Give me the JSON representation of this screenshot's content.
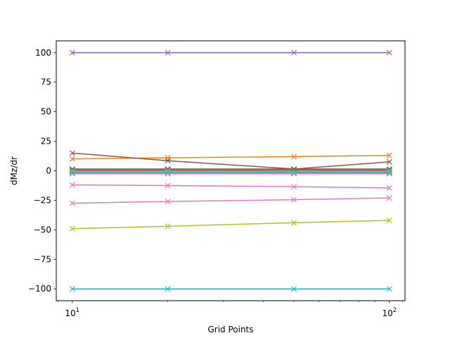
{
  "chart_data": {
    "type": "line",
    "title": "",
    "xlabel": "Grid Points",
    "ylabel": "dMz/dr",
    "xscale": "log",
    "x": [
      10,
      20,
      50,
      100
    ],
    "xlim": [
      8.9,
      112
    ],
    "ylim": [
      -110,
      110
    ],
    "xticks": [
      {
        "value": 10,
        "base": "10",
        "exp": "1"
      },
      {
        "value": 100,
        "base": "10",
        "exp": "2"
      }
    ],
    "yticks": [
      {
        "value": 100,
        "label": "100"
      },
      {
        "value": 75,
        "label": "75"
      },
      {
        "value": 50,
        "label": "50"
      },
      {
        "value": 25,
        "label": "25"
      },
      {
        "value": 0,
        "label": "0"
      },
      {
        "value": -25,
        "label": "−25"
      },
      {
        "value": -50,
        "label": "−50"
      },
      {
        "value": -75,
        "label": "−75"
      },
      {
        "value": -100,
        "label": "−100"
      }
    ],
    "marker": "x",
    "grid": false,
    "series": [
      {
        "color": "#1f77b4",
        "values": [
          1.5,
          1.5,
          1.5,
          1.5
        ]
      },
      {
        "color": "#ff7f0e",
        "values": [
          -2.0,
          -2.0,
          -2.0,
          -2.0
        ]
      },
      {
        "color": "#2ca02c",
        "values": [
          0.5,
          0.5,
          0.5,
          0.5
        ]
      },
      {
        "color": "#d62728",
        "values": [
          0.0,
          0.0,
          0.0,
          0.0
        ]
      },
      {
        "color": "#9467bd",
        "values": [
          -1.0,
          -1.0,
          -1.0,
          -1.0
        ]
      },
      {
        "color": "#8c564b",
        "values": [
          1.0,
          1.0,
          1.0,
          1.0
        ]
      },
      {
        "color": "#e377c2",
        "values": [
          -2.5,
          -2.5,
          -2.5,
          -2.5
        ]
      },
      {
        "color": "#7f7f7f",
        "values": [
          0.5,
          0.5,
          0.5,
          0.5
        ]
      },
      {
        "color": "#bcbd22",
        "values": [
          -0.5,
          -0.5,
          -0.5,
          -0.5
        ]
      },
      {
        "color": "#17becf",
        "values": [
          -1.5,
          -1.5,
          -1.5,
          -1.5
        ]
      },
      {
        "color": "#ff7f0e",
        "values": [
          10.0,
          11.0,
          12.0,
          13.0
        ]
      },
      {
        "color": "#8c564b",
        "values": [
          15.0,
          8.5,
          1.5,
          7.5
        ]
      },
      {
        "color": "#e377c2",
        "values": [
          -12.0,
          -12.5,
          -13.5,
          -14.5
        ]
      },
      {
        "color": "#e377c2",
        "values": [
          -27.5,
          -26.0,
          -24.5,
          -23.0
        ]
      },
      {
        "color": "#bcbd22",
        "values": [
          -49.0,
          -47.0,
          -44.0,
          -42.0
        ]
      },
      {
        "color": "#17becf",
        "values": [
          -100.0,
          -100.0,
          -100.0,
          -100.0
        ]
      },
      {
        "color": "#9467bd",
        "values": [
          100.0,
          100.0,
          100.0,
          100.0
        ]
      }
    ]
  }
}
